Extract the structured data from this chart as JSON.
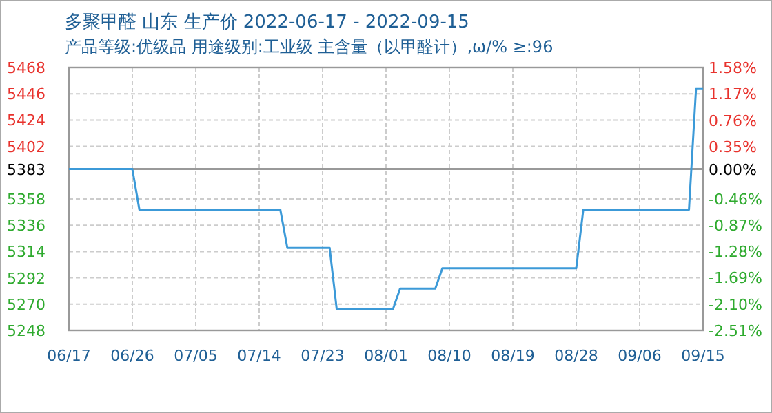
{
  "chart_data": {
    "type": "line",
    "title": "多聚甲醛 山东 生产价 2022-06-17 - 2022-09-15",
    "subtitle": "产品等级:优级品 用途级别:工业级 主含量（以甲醛计）,ω/%  ≥:96",
    "grid": true,
    "xlim": [
      "2022-06-17",
      "2022-09-15"
    ],
    "xticks": [
      {
        "value": "2022-06-17",
        "label": "06/17"
      },
      {
        "value": "2022-06-26",
        "label": "06/26"
      },
      {
        "value": "2022-07-05",
        "label": "07/05"
      },
      {
        "value": "2022-07-14",
        "label": "07/14"
      },
      {
        "value": "2022-07-23",
        "label": "07/23"
      },
      {
        "value": "2022-08-01",
        "label": "08/01"
      },
      {
        "value": "2022-08-10",
        "label": "08/10"
      },
      {
        "value": "2022-08-19",
        "label": "08/19"
      },
      {
        "value": "2022-08-28",
        "label": "08/28"
      },
      {
        "value": "2022-09-06",
        "label": "09/06"
      },
      {
        "value": "2022-09-15",
        "label": "09/15"
      }
    ],
    "ylim": [
      5248,
      5468
    ],
    "yticks": [
      5248,
      5270,
      5292,
      5314,
      5336,
      5358,
      5383,
      5402,
      5424,
      5446,
      5468
    ],
    "y2lim": [
      -2.51,
      1.58
    ],
    "y2ticks": [
      {
        "value": -2.51,
        "label": "-2.51%"
      },
      {
        "value": -2.1,
        "label": "-2.10%"
      },
      {
        "value": -1.69,
        "label": "-1.69%"
      },
      {
        "value": -1.28,
        "label": "-1.28%"
      },
      {
        "value": -0.87,
        "label": "-0.87%"
      },
      {
        "value": -0.46,
        "label": "-0.46%"
      },
      {
        "value": 0,
        "label": "0.00%"
      },
      {
        "value": 0.35,
        "label": "0.35%"
      },
      {
        "value": 0.76,
        "label": "0.76%"
      },
      {
        "value": 1.17,
        "label": "1.17%"
      },
      {
        "value": 1.58,
        "label": "1.58%"
      }
    ],
    "ref_lines": [
      {
        "axis": "y",
        "value": 5383,
        "color": "#999999"
      }
    ],
    "series": [
      {
        "color": "#3c9ad8",
        "x": [
          "2022-06-17",
          "2022-06-26",
          "2022-06-27",
          "2022-07-17",
          "2022-07-18",
          "2022-07-24",
          "2022-07-25",
          "2022-08-02",
          "2022-08-03",
          "2022-08-08",
          "2022-08-09",
          "2022-08-28",
          "2022-08-29",
          "2022-09-13",
          "2022-09-14",
          "2022-09-15"
        ],
        "values": [
          5383,
          5383,
          5349,
          5349,
          5317,
          5317,
          5266,
          5266,
          5283,
          5283,
          5300,
          5300,
          5349,
          5349,
          5450,
          5450
        ]
      }
    ]
  }
}
